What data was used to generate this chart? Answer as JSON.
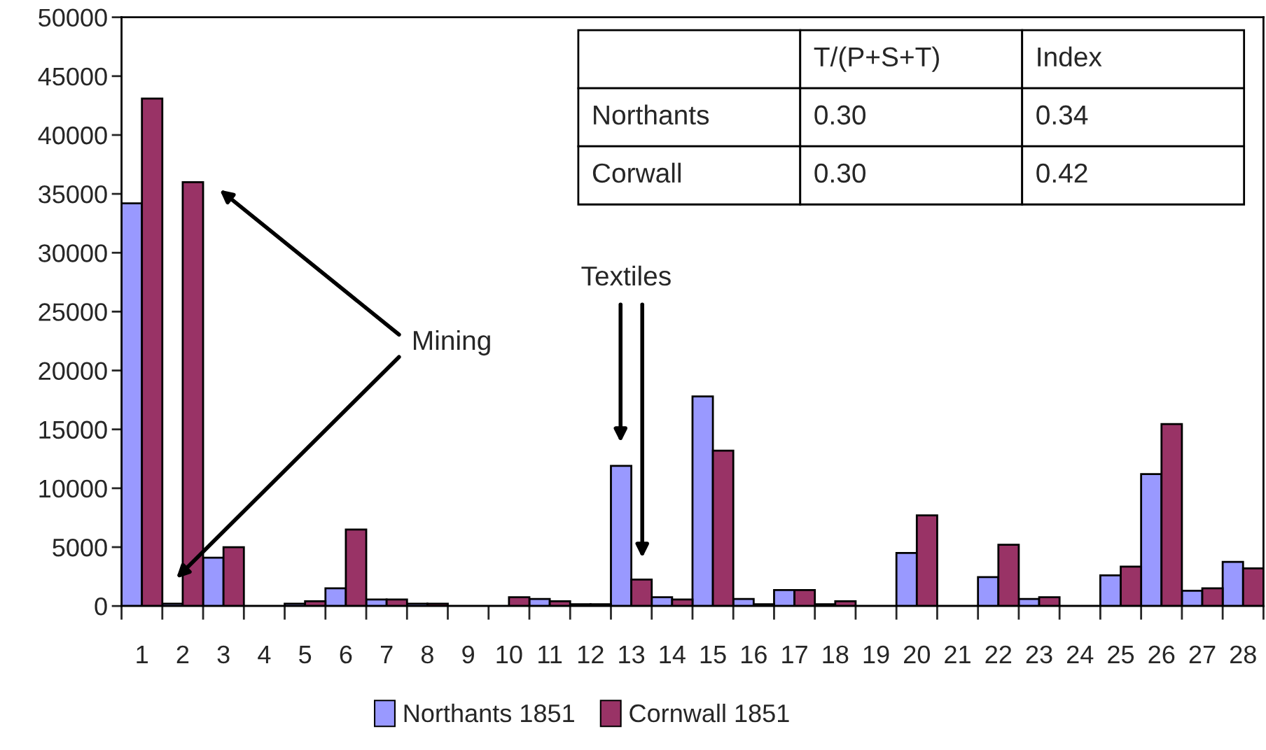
{
  "chart_data": {
    "type": "bar",
    "categories": [
      "1",
      "2",
      "3",
      "4",
      "5",
      "6",
      "7",
      "8",
      "9",
      "10",
      "11",
      "12",
      "13",
      "14",
      "15",
      "16",
      "17",
      "18",
      "19",
      "20",
      "21",
      "22",
      "23",
      "24",
      "25",
      "26",
      "27",
      "28"
    ],
    "series": [
      {
        "name": "Northants 1851",
        "color": "#9999ff",
        "values": [
          34200,
          200,
          4100,
          0,
          200,
          1500,
          550,
          200,
          0,
          0,
          600,
          150,
          11900,
          750,
          17800,
          600,
          1350,
          150,
          0,
          4500,
          0,
          2450,
          600,
          0,
          2600,
          11200,
          1300,
          3750
        ]
      },
      {
        "name": "Cornwall 1851",
        "color": "#993366",
        "values": [
          43100,
          36000,
          5000,
          0,
          400,
          6500,
          550,
          200,
          0,
          750,
          400,
          150,
          2250,
          550,
          13200,
          150,
          1350,
          400,
          0,
          7700,
          0,
          5200,
          750,
          0,
          3350,
          15450,
          1500,
          3200
        ]
      }
    ],
    "ylim": [
      0,
      50000
    ],
    "yticks": [
      0,
      5000,
      10000,
      15000,
      20000,
      25000,
      30000,
      35000,
      40000,
      45000,
      50000
    ],
    "grid": false,
    "legend": "bottom",
    "annotations": [
      "Mining",
      "Textiles",
      "T/(P+S+T)",
      "Index",
      "Northants",
      "0.30",
      "0.34",
      "Corwall",
      "0.30",
      "0.42"
    ]
  }
}
